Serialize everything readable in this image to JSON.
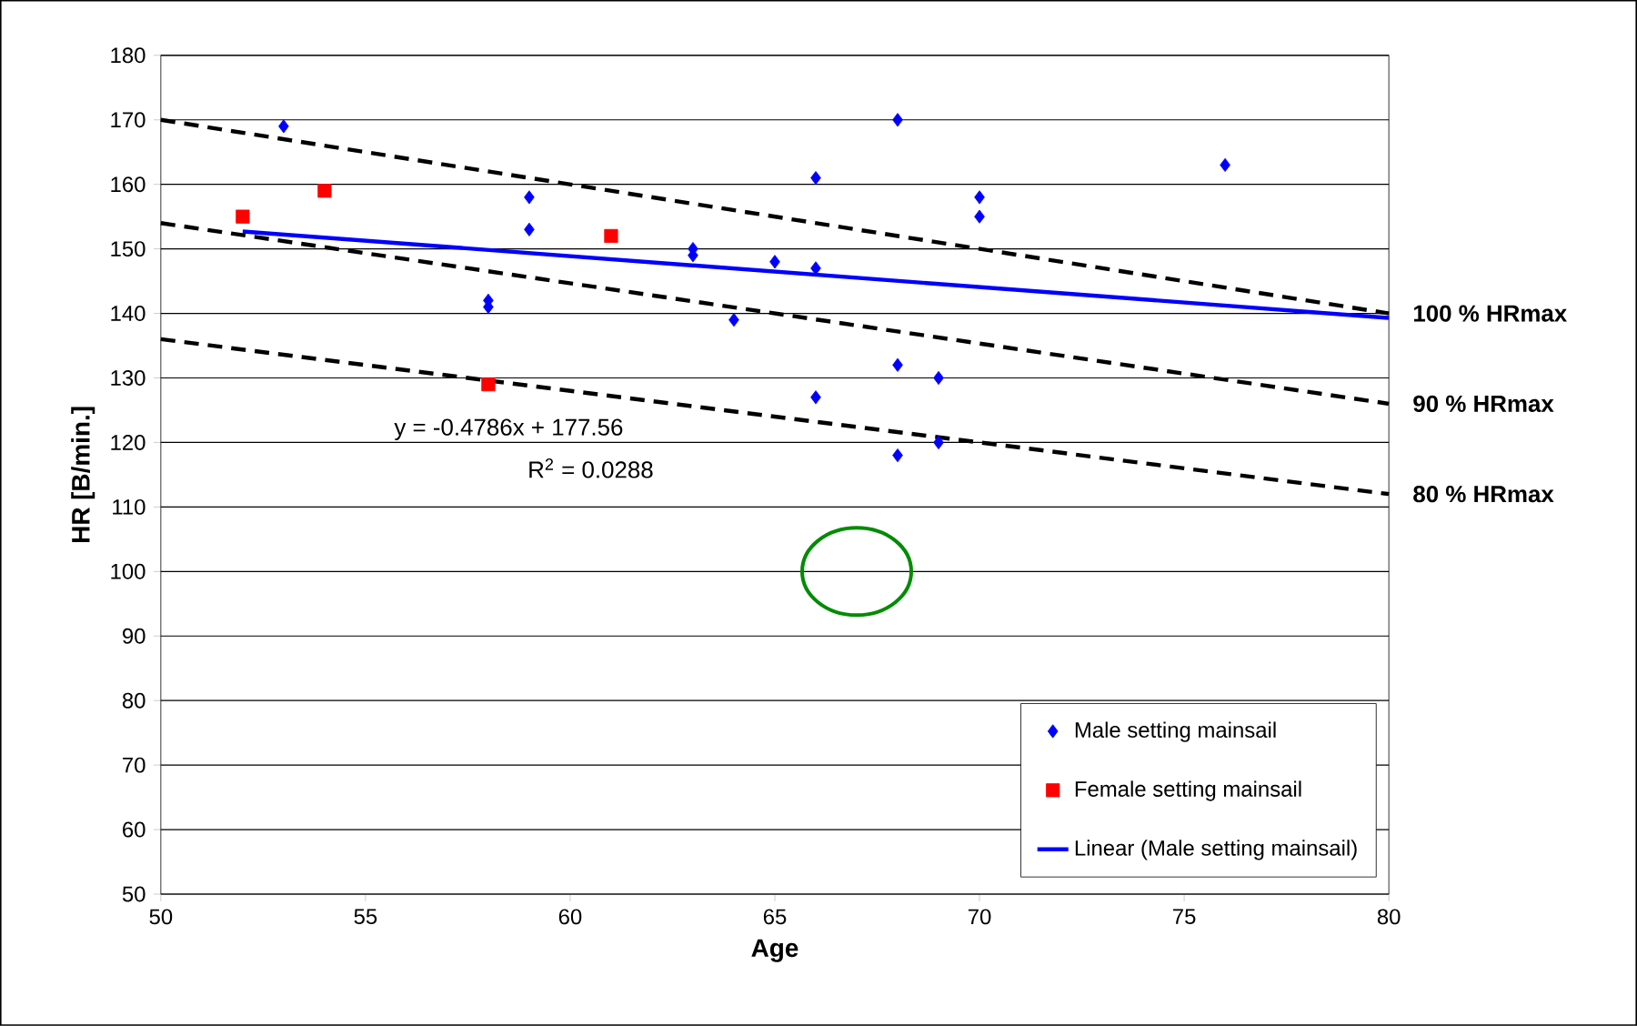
{
  "chart_data": {
    "type": "scatter",
    "xlabel": "Age",
    "ylabel": "HR [B/min.]",
    "xlim": [
      50,
      80
    ],
    "xticks": [
      50,
      55,
      60,
      65,
      70,
      75,
      80
    ],
    "ylim": [
      50,
      180
    ],
    "yticks": [
      50,
      60,
      70,
      80,
      90,
      100,
      110,
      120,
      130,
      140,
      150,
      160,
      170,
      180
    ],
    "grid": "y",
    "legend": "bottom right",
    "annotations": [
      "y = -0.4786x + 177.56",
      "R$^{2}$ = 0.0288"
    ],
    "series": [
      {
        "name": "Male setting mainsail",
        "color": "#0000ff",
        "marker": "diamond",
        "x": [
          53,
          58,
          58,
          59,
          59,
          63,
          63,
          64,
          65,
          66,
          66,
          66,
          68,
          68,
          68,
          69,
          69,
          70,
          70,
          76
        ],
        "values": [
          169,
          142,
          141,
          158,
          153,
          150,
          149,
          139,
          148,
          161,
          147,
          127,
          170,
          132,
          118,
          130,
          120,
          158,
          155,
          163
        ]
      },
      {
        "name": "Female setting mainsail",
        "color": "#ff0000",
        "marker": "square",
        "x": [
          52,
          54,
          58,
          61
        ],
        "values": [
          155,
          159,
          129,
          152
        ]
      },
      {
        "type": "line",
        "name": "Linear (Male setting mainsail)",
        "color": "#0000ff",
        "line_style": "solid",
        "marker": "none",
        "x": [
          52,
          80
        ],
        "values": [
          152.7,
          139.3
        ]
      },
      {
        "type": "line",
        "name": "100 % HRmax",
        "color": "#000000",
        "line_style": "dashed",
        "marker": "none",
        "x": [
          50,
          80
        ],
        "values": [
          170,
          140
        ]
      },
      {
        "type": "line",
        "name": "90 % HRmax",
        "color": "#000000",
        "line_style": "dashed",
        "marker": "none",
        "x": [
          50,
          80
        ],
        "values": [
          154,
          126
        ]
      },
      {
        "type": "line",
        "name": "80 % HRmax",
        "color": "#000000",
        "line_style": "dashed",
        "marker": "none",
        "x": [
          50,
          80
        ],
        "values": [
          136,
          112
        ]
      }
    ]
  }
}
